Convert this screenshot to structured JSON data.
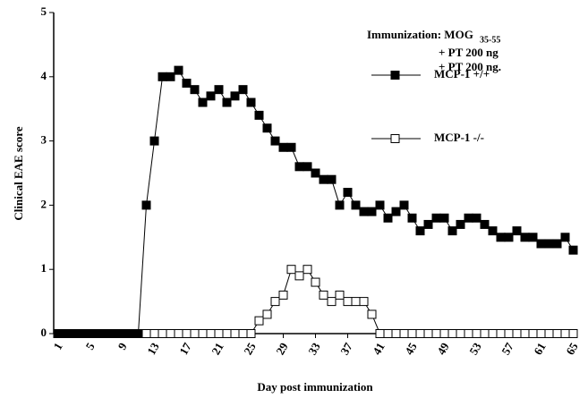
{
  "chart_data": {
    "type": "line",
    "x_label": "Day post immunization",
    "y_label": "Clinical EAE score",
    "annotations": [
      "Immunization: MOG",
      "35-55",
      "+ PT 200 ng",
      "+ PT 200 ng."
    ],
    "x": [
      1,
      2,
      3,
      4,
      5,
      6,
      7,
      8,
      9,
      10,
      11,
      12,
      13,
      14,
      15,
      16,
      17,
      18,
      19,
      20,
      21,
      22,
      23,
      24,
      25,
      26,
      27,
      28,
      29,
      30,
      31,
      32,
      33,
      34,
      35,
      36,
      37,
      38,
      39,
      40,
      41,
      42,
      43,
      44,
      45,
      46,
      47,
      48,
      49,
      50,
      51,
      52,
      53,
      54,
      55,
      56,
      57,
      58,
      59,
      60,
      61,
      62,
      63,
      64,
      65
    ],
    "series": [
      {
        "name": "MCP-1 -/-",
        "color": "#ffffff",
        "values": [
          0,
          0,
          0,
          0,
          0,
          0,
          0,
          0,
          0,
          0,
          0,
          0,
          0,
          0,
          0,
          0,
          0,
          0,
          0,
          0,
          0,
          0,
          0,
          0,
          0,
          0.2,
          0.3,
          0.5,
          0.6,
          1.0,
          0.9,
          1.0,
          0.8,
          0.6,
          0.5,
          0.6,
          0.5,
          0.5,
          0.5,
          0.3,
          0,
          0,
          0,
          0,
          0,
          0,
          0,
          0,
          0,
          0,
          0,
          0,
          0,
          0,
          0,
          0,
          0,
          0,
          0,
          0,
          0,
          0,
          0,
          0,
          0
        ]
      },
      {
        "name": "MCP-1 +/+",
        "color": "#000000",
        "values": [
          0,
          0,
          0,
          0,
          0,
          0,
          0,
          0,
          0,
          0,
          0,
          2.0,
          3.0,
          4.0,
          4.0,
          4.1,
          3.9,
          3.8,
          3.6,
          3.7,
          3.8,
          3.6,
          3.7,
          3.8,
          3.6,
          3.4,
          3.2,
          3.0,
          2.9,
          2.9,
          2.6,
          2.6,
          2.5,
          2.4,
          2.4,
          2.0,
          2.2,
          2.0,
          1.9,
          1.9,
          2.0,
          1.8,
          1.9,
          2.0,
          1.8,
          1.6,
          1.7,
          1.8,
          1.8,
          1.6,
          1.7,
          1.8,
          1.8,
          1.7,
          1.6,
          1.5,
          1.5,
          1.6,
          1.5,
          1.5,
          1.4,
          1.4,
          1.4,
          1.5,
          1.3
        ]
      }
    ],
    "xlim": [
      0.5,
      65.5
    ],
    "xticks": [
      1,
      5,
      9,
      13,
      17,
      21,
      25,
      29,
      33,
      37,
      41,
      45,
      49,
      53,
      57,
      61,
      65
    ],
    "ylim": [
      0,
      5
    ],
    "yticks": [
      0,
      1,
      2,
      3,
      4,
      5
    ]
  }
}
